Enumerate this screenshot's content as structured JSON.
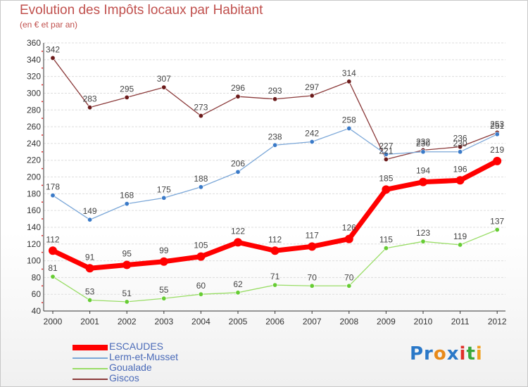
{
  "title": "Evolution des Impôts locaux par Habitant",
  "subtitle": "(en € et par an)",
  "logo": {
    "part1": "Pr",
    "part2": "o",
    "part3": "x",
    "part4": "i",
    "part5": "t",
    "part6": "i"
  },
  "chart_data": {
    "type": "line",
    "title": "Evolution des Impôts locaux par Habitant",
    "subtitle": "(en € et par an)",
    "xlabel": "",
    "ylabel": "",
    "ylim": [
      40,
      360
    ],
    "ytick_step": 20,
    "grid": "horizontal",
    "legend_position": "bottom-left",
    "categories": [
      "2000",
      "2001",
      "2002",
      "2003",
      "2004",
      "2005",
      "2006",
      "2007",
      "2008",
      "2009",
      "2010",
      "2011",
      "2012"
    ],
    "series": [
      {
        "name": "ESCAUDES",
        "color": "#ff0000",
        "marker": "#ff0000",
        "width": 7,
        "values": [
          112,
          91,
          95,
          99,
          105,
          122,
          112,
          117,
          126,
          185,
          194,
          196,
          219
        ]
      },
      {
        "name": "Lerm-et-Musset",
        "color": "#7ba7d8",
        "marker": "#3a7ac8",
        "width": 1.3,
        "values": [
          178,
          149,
          168,
          175,
          188,
          206,
          238,
          242,
          258,
          227,
          230,
          230,
          251
        ]
      },
      {
        "name": "Goualade",
        "color": "#99dd66",
        "marker": "#66cc33",
        "width": 1.3,
        "values": [
          81,
          53,
          51,
          55,
          60,
          62,
          71,
          70,
          70,
          115,
          123,
          119,
          137
        ]
      },
      {
        "name": "Giscos",
        "color": "#8b3a3a",
        "marker": "#6b1a1a",
        "width": 1.3,
        "values": [
          342,
          283,
          295,
          307,
          273,
          296,
          293,
          297,
          314,
          221,
          232,
          236,
          253
        ]
      }
    ]
  }
}
